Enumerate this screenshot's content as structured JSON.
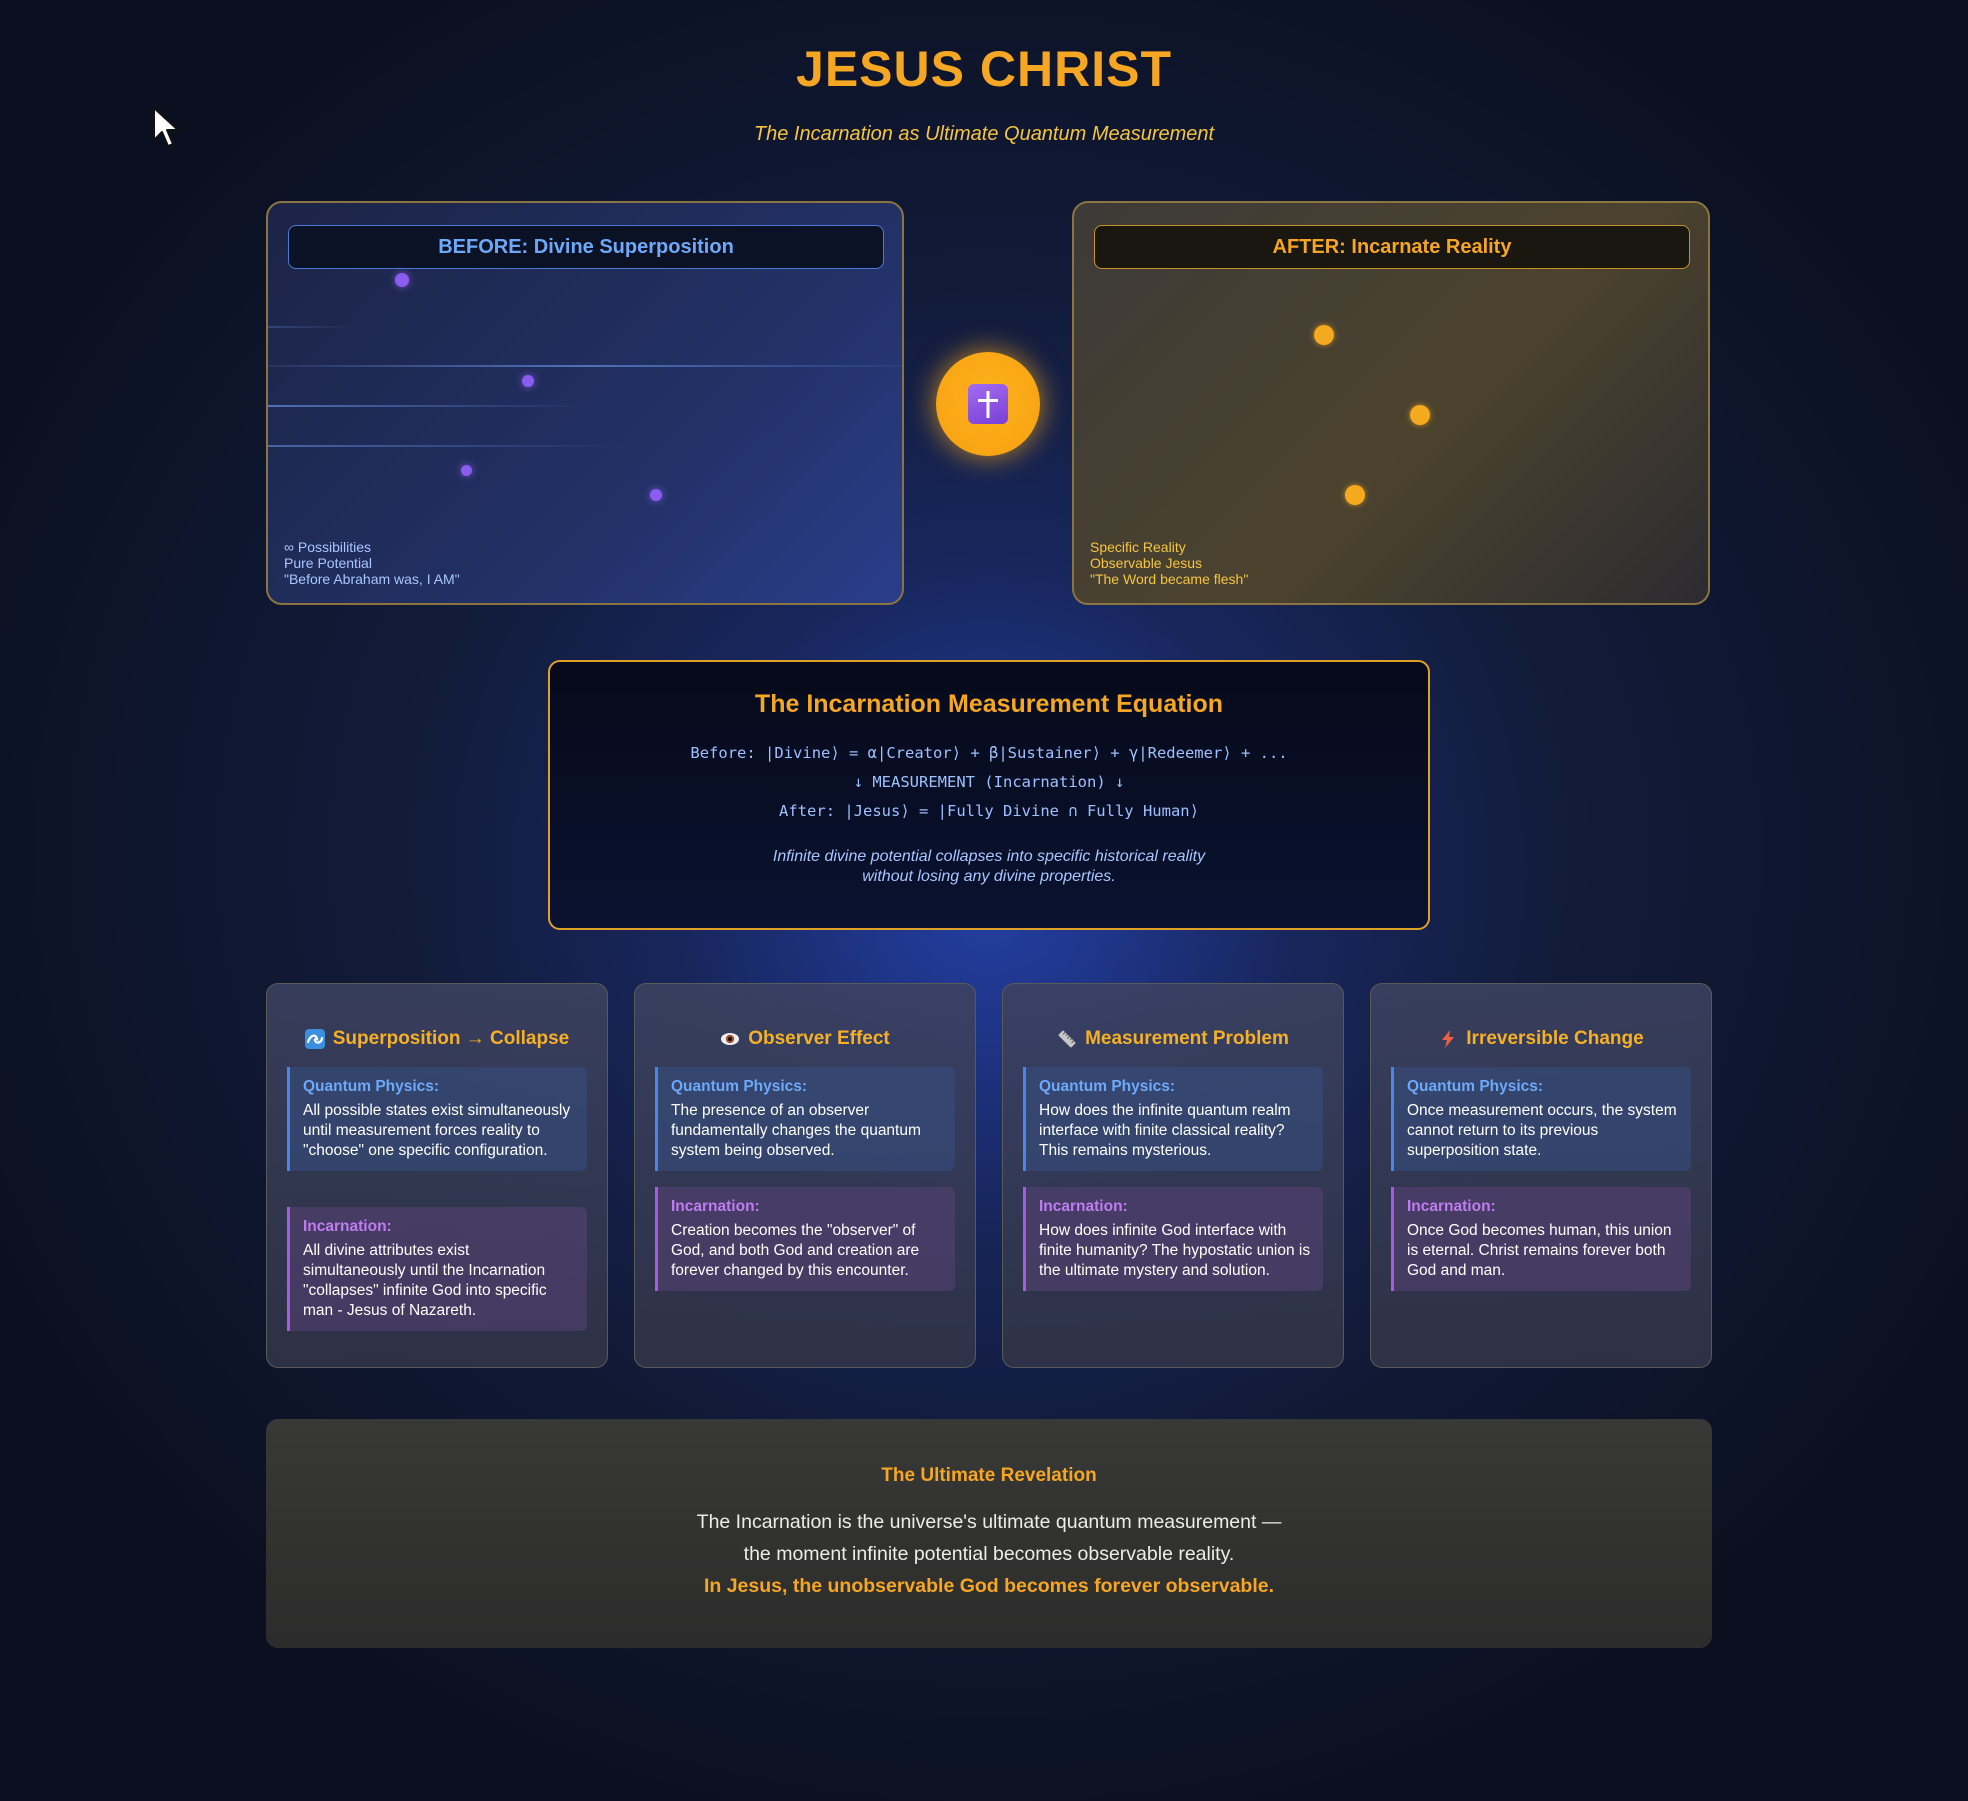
{
  "header": {
    "title": "JESUS CHRIST",
    "subtitle": "The Incarnation as Ultimate Quantum Measurement"
  },
  "before_panel": {
    "heading": "BEFORE: Divine Superposition",
    "notes": [
      "∞ Possibilities",
      "Pure Potential",
      "\"Before Abraham was, I AM\""
    ]
  },
  "after_panel": {
    "heading": "AFTER: Incarnate Reality",
    "notes": [
      "Specific Reality",
      "Observable Jesus",
      "\"The Word became flesh\""
    ]
  },
  "center_icon": "cross-icon",
  "equation": {
    "title": "The Incarnation Measurement Equation",
    "before": "Before: |Divine⟩ = α|Creator⟩ + β|Sustainer⟩ + γ|Redeemer⟩ + ...",
    "measurement": "↓ MEASUREMENT (Incarnation) ↓",
    "after": "After: |Jesus⟩ = |Fully Divine ∩ Fully Human⟩",
    "note_line1": "Infinite divine potential collapses into specific historical reality",
    "note_line2": "without losing any divine properties."
  },
  "cards": [
    {
      "icon": "wave-icon",
      "title": "Superposition → Collapse",
      "quantum_label": "Quantum Physics:",
      "quantum_text": "All possible states exist simultaneously until measurement forces reality to \"choose\" one specific configuration.",
      "incarnation_label": "Incarnation:",
      "incarnation_text": "All divine attributes exist simultaneously until the Incarnation \"collapses\" infinite God into specific man - Jesus of Nazareth."
    },
    {
      "icon": "eye-icon",
      "title": "Observer Effect",
      "quantum_label": "Quantum Physics:",
      "quantum_text": "The presence of an observer fundamentally changes the quantum system being observed.",
      "incarnation_label": "Incarnation:",
      "incarnation_text": "Creation becomes the \"observer\" of God, and both God and creation are forever changed by this encounter."
    },
    {
      "icon": "ruler-icon",
      "title": "Measurement Problem",
      "quantum_label": "Quantum Physics:",
      "quantum_text": "How does the infinite quantum realm interface with finite classical reality? This remains mysterious.",
      "incarnation_label": "Incarnation:",
      "incarnation_text": "How does infinite God interface with finite humanity? The hypostatic union is the ultimate mystery and solution."
    },
    {
      "icon": "lightning-icon",
      "title": "Irreversible Change",
      "quantum_label": "Quantum Physics:",
      "quantum_text": "Once measurement occurs, the system cannot return to its previous superposition state.",
      "incarnation_label": "Incarnation:",
      "incarnation_text": "Once God becomes human, this union is eternal. Christ remains forever both God and man."
    }
  ],
  "revelation": {
    "title": "The Ultimate Revelation",
    "line1": "The Incarnation is the universe's ultimate quantum measurement —",
    "line2": "the moment infinite potential becomes observable reality.",
    "line3": "In Jesus, the unobservable God becomes forever observable."
  },
  "colors": {
    "accent_gold": "#f5a623",
    "quantum_blue": "#4a86e8",
    "incarnation_purple": "#a35ee0"
  }
}
